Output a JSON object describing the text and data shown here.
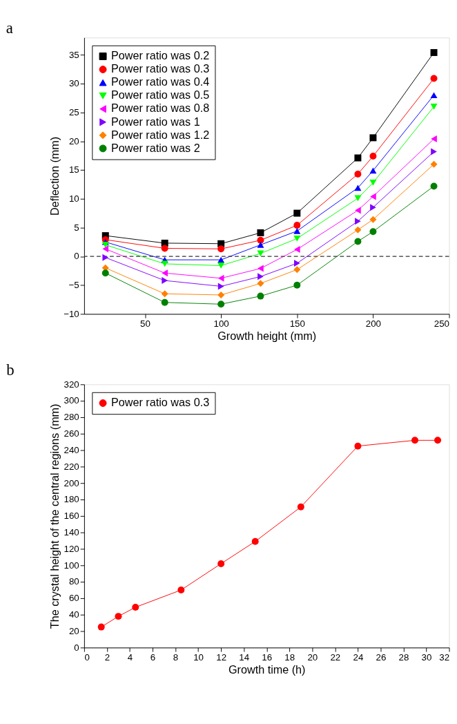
{
  "chart_data": [
    {
      "type": "line",
      "annotations": [
        "a"
      ],
      "xlabel": "Growth height (mm)",
      "ylabel": "Deflection (mm)",
      "x": [
        24,
        63,
        100,
        126,
        150,
        190,
        200,
        240
      ],
      "xlim": [
        10,
        250
      ],
      "xticks": [
        50,
        100,
        150,
        200,
        250
      ],
      "ylim": [
        -10,
        38
      ],
      "yticks": [
        -10,
        -5,
        0,
        5,
        10,
        15,
        20,
        25,
        30,
        35
      ],
      "grid": false,
      "legend": "top left",
      "line_style": "solid",
      "ref_lines": [
        {
          "axis": "y",
          "value": 0,
          "color": "#333333",
          "line_style": "dashed"
        }
      ],
      "series": [
        {
          "name": "Power ratio was 0.2",
          "color": "#000000",
          "marker": "square",
          "values": [
            3.6,
            2.3,
            2.2,
            4.1,
            7.5,
            17.1,
            20.6,
            35.4
          ]
        },
        {
          "name": "Power ratio was 0.3",
          "color": "#ff0000",
          "marker": "circle",
          "values": [
            2.9,
            1.4,
            1.3,
            2.8,
            5.4,
            14.3,
            17.4,
            30.9
          ]
        },
        {
          "name": "Power ratio was 0.4",
          "color": "#0000ff",
          "marker": "triangle-up",
          "values": [
            2.5,
            -0.6,
            -0.6,
            2.0,
            4.4,
            11.9,
            14.9,
            28.0
          ]
        },
        {
          "name": "Power ratio was 0.5",
          "color": "#00ff00",
          "marker": "triangle-down",
          "values": [
            2.0,
            -1.3,
            -1.6,
            0.5,
            3.1,
            10.1,
            12.8,
            26.0
          ]
        },
        {
          "name": "Power ratio was 0.8",
          "color": "#ff00ff",
          "marker": "triangle-left",
          "values": [
            1.3,
            -2.9,
            -3.8,
            -2.1,
            1.2,
            8.0,
            10.4,
            20.4
          ]
        },
        {
          "name": "Power ratio was 1",
          "color": "#8000ff",
          "marker": "triangle-right",
          "values": [
            -0.2,
            -4.2,
            -5.2,
            -3.5,
            -1.2,
            6.1,
            8.5,
            18.2
          ]
        },
        {
          "name": "Power ratio was 1.2",
          "color": "#ff8000",
          "marker": "diamond",
          "values": [
            -2.0,
            -6.5,
            -6.7,
            -4.7,
            -2.3,
            4.6,
            6.4,
            16.0
          ]
        },
        {
          "name": "Power ratio was 2",
          "color": "#008000",
          "marker": "circle",
          "values": [
            -2.9,
            -8.0,
            -8.3,
            -6.9,
            -5.0,
            2.6,
            4.3,
            12.2
          ]
        }
      ]
    },
    {
      "type": "line",
      "annotations": [
        "b"
      ],
      "xlabel": "Growth time (h)",
      "ylabel": "The crystal height of the central regions (mm)",
      "x": [
        1.5,
        3,
        4.5,
        8.5,
        12,
        15,
        19,
        24,
        29,
        31
      ],
      "xlim": [
        0,
        32
      ],
      "xticks": [
        0,
        2,
        4,
        6,
        8,
        10,
        12,
        14,
        16,
        18,
        20,
        22,
        24,
        26,
        28,
        30,
        32
      ],
      "ylim": [
        0,
        320
      ],
      "yticks": [
        0,
        20,
        40,
        60,
        80,
        100,
        120,
        140,
        160,
        180,
        200,
        220,
        240,
        260,
        280,
        300,
        320
      ],
      "grid": false,
      "legend": "top left",
      "line_style": "solid",
      "series": [
        {
          "name": "Power ratio was 0.3",
          "color": "#ff0000",
          "marker": "circle",
          "values": [
            25,
            38,
            49,
            70,
            102,
            129,
            171,
            245,
            252,
            252
          ]
        }
      ]
    }
  ]
}
